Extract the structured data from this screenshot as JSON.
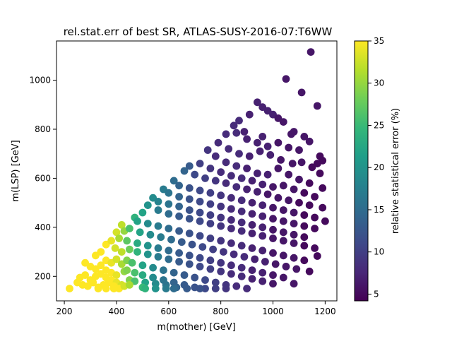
{
  "chart_data": {
    "type": "scatter",
    "title": "rel.stat.err of best SR, ATLAS-SUSY-2016-07:T6WW",
    "xlabel": "m(mother) [GeV]",
    "ylabel": "m(LSP) [GeV]",
    "xlim": [
      170,
      1245
    ],
    "ylim": [
      100,
      1160
    ],
    "xticks": [
      "200",
      "400",
      "600",
      "800",
      "1000",
      "1200"
    ],
    "yticks": [
      "200",
      "400",
      "600",
      "800",
      "1000"
    ],
    "xtick_values": [
      200,
      400,
      600,
      800,
      1000,
      1200
    ],
    "ytick_values": [
      200,
      400,
      600,
      800,
      1000
    ],
    "colorbar": {
      "label": "relative statistical error (%)",
      "range": [
        4.2,
        35
      ],
      "ticks": [
        "5",
        "10",
        "15",
        "20",
        "25",
        "30",
        "35"
      ],
      "tick_values": [
        5,
        10,
        15,
        20,
        25,
        30,
        35
      ],
      "colormap": "viridis"
    },
    "grid": false,
    "band_note": "grid of signal points spanning diagonal bands from m(mother)-m(LSP) ≈ 50 to ≈ 700 GeV",
    "points": [
      [
        1145,
        1115,
        6
      ],
      [
        1050,
        1005,
        6
      ],
      [
        1110,
        950,
        6
      ],
      [
        1170,
        895,
        6
      ],
      [
        940,
        910,
        7
      ],
      [
        960,
        890,
        7
      ],
      [
        980,
        875,
        7
      ],
      [
        1000,
        860,
        7
      ],
      [
        910,
        860,
        7
      ],
      [
        1020,
        845,
        6
      ],
      [
        1040,
        830,
        6
      ],
      [
        870,
        835,
        8
      ],
      [
        850,
        815,
        8
      ],
      [
        890,
        790,
        7
      ],
      [
        960,
        770,
        7
      ],
      [
        1080,
        790,
        6
      ],
      [
        1070,
        780,
        6
      ],
      [
        1120,
        770,
        6
      ],
      [
        1140,
        750,
        6
      ],
      [
        820,
        780,
        8
      ],
      [
        860,
        785,
        8
      ],
      [
        900,
        760,
        7
      ],
      [
        940,
        745,
        7
      ],
      [
        980,
        730,
        7
      ],
      [
        1020,
        745,
        6
      ],
      [
        1060,
        725,
        6
      ],
      [
        1100,
        715,
        6
      ],
      [
        1180,
        690,
        5
      ],
      [
        1190,
        672,
        5
      ],
      [
        1170,
        660,
        5
      ],
      [
        790,
        745,
        8
      ],
      [
        830,
        720,
        8
      ],
      [
        870,
        700,
        8
      ],
      [
        910,
        690,
        7
      ],
      [
        950,
        710,
        7
      ],
      [
        990,
        695,
        7
      ],
      [
        1030,
        675,
        6
      ],
      [
        1075,
        660,
        6
      ],
      [
        1110,
        665,
        6
      ],
      [
        1150,
        645,
        5
      ],
      [
        1180,
        620,
        5
      ],
      [
        750,
        715,
        9
      ],
      [
        780,
        690,
        8
      ],
      [
        820,
        665,
        8
      ],
      [
        860,
        650,
        8
      ],
      [
        900,
        640,
        7
      ],
      [
        940,
        620,
        7
      ],
      [
        980,
        615,
        7
      ],
      [
        1020,
        640,
        6
      ],
      [
        1060,
        615,
        6
      ],
      [
        1100,
        595,
        6
      ],
      [
        1140,
        580,
        5
      ],
      [
        1190,
        560,
        5
      ],
      [
        720,
        660,
        10
      ],
      [
        760,
        640,
        9
      ],
      [
        800,
        625,
        8
      ],
      [
        840,
        610,
        8
      ],
      [
        880,
        600,
        8
      ],
      [
        920,
        590,
        7
      ],
      [
        960,
        575,
        7
      ],
      [
        1000,
        565,
        6
      ],
      [
        1040,
        570,
        6
      ],
      [
        1080,
        555,
        6
      ],
      [
        1120,
        540,
        5
      ],
      [
        1160,
        525,
        5
      ],
      [
        680,
        650,
        13
      ],
      [
        660,
        630,
        14
      ],
      [
        700,
        615,
        11
      ],
      [
        740,
        600,
        10
      ],
      [
        780,
        590,
        9
      ],
      [
        820,
        580,
        8
      ],
      [
        860,
        565,
        8
      ],
      [
        900,
        555,
        7
      ],
      [
        940,
        545,
        7
      ],
      [
        980,
        535,
        6
      ],
      [
        1020,
        520,
        6
      ],
      [
        1060,
        510,
        6
      ],
      [
        1100,
        500,
        5
      ],
      [
        1140,
        490,
        5
      ],
      [
        1190,
        480,
        5
      ],
      [
        620,
        590,
        15
      ],
      [
        640,
        570,
        14
      ],
      [
        680,
        560,
        12
      ],
      [
        720,
        550,
        11
      ],
      [
        760,
        540,
        10
      ],
      [
        800,
        530,
        9
      ],
      [
        840,
        520,
        8
      ],
      [
        880,
        510,
        8
      ],
      [
        920,
        500,
        7
      ],
      [
        960,
        490,
        7
      ],
      [
        1000,
        480,
        6
      ],
      [
        1040,
        470,
        6
      ],
      [
        1080,
        460,
        6
      ],
      [
        1120,
        450,
        5
      ],
      [
        1160,
        440,
        5
      ],
      [
        1200,
        425,
        5
      ],
      [
        580,
        555,
        17
      ],
      [
        600,
        540,
        16
      ],
      [
        640,
        525,
        14
      ],
      [
        680,
        515,
        12
      ],
      [
        720,
        505,
        11
      ],
      [
        760,
        495,
        10
      ],
      [
        800,
        485,
        9
      ],
      [
        840,
        475,
        8
      ],
      [
        880,
        465,
        8
      ],
      [
        920,
        455,
        7
      ],
      [
        960,
        445,
        7
      ],
      [
        1000,
        435,
        6
      ],
      [
        1040,
        425,
        6
      ],
      [
        1080,
        415,
        6
      ],
      [
        1120,
        405,
        5
      ],
      [
        1160,
        395,
        5
      ],
      [
        540,
        520,
        19
      ],
      [
        560,
        505,
        18
      ],
      [
        600,
        495,
        16
      ],
      [
        640,
        485,
        14
      ],
      [
        680,
        470,
        12
      ],
      [
        720,
        460,
        11
      ],
      [
        760,
        450,
        10
      ],
      [
        800,
        440,
        9
      ],
      [
        840,
        430,
        8
      ],
      [
        880,
        420,
        8
      ],
      [
        920,
        410,
        7
      ],
      [
        960,
        400,
        7
      ],
      [
        1000,
        390,
        6
      ],
      [
        1040,
        380,
        6
      ],
      [
        1080,
        370,
        6
      ],
      [
        1120,
        360,
        5
      ],
      [
        500,
        460,
        22
      ],
      [
        520,
        490,
        20
      ],
      [
        560,
        470,
        17
      ],
      [
        600,
        455,
        15
      ],
      [
        640,
        445,
        13
      ],
      [
        680,
        435,
        12
      ],
      [
        720,
        425,
        11
      ],
      [
        760,
        415,
        10
      ],
      [
        800,
        405,
        9
      ],
      [
        840,
        395,
        8
      ],
      [
        880,
        385,
        8
      ],
      [
        920,
        375,
        7
      ],
      [
        960,
        365,
        7
      ],
      [
        1000,
        355,
        6
      ],
      [
        1040,
        345,
        6
      ],
      [
        1080,
        335,
        6
      ],
      [
        1120,
        325,
        5
      ],
      [
        1160,
        315,
        5
      ],
      [
        470,
        440,
        24
      ],
      [
        480,
        425,
        22
      ],
      [
        520,
        415,
        19
      ],
      [
        560,
        405,
        17
      ],
      [
        600,
        395,
        15
      ],
      [
        640,
        385,
        13
      ],
      [
        680,
        375,
        12
      ],
      [
        720,
        365,
        11
      ],
      [
        760,
        355,
        10
      ],
      [
        800,
        345,
        9
      ],
      [
        840,
        335,
        8
      ],
      [
        880,
        325,
        8
      ],
      [
        920,
        315,
        7
      ],
      [
        960,
        305,
        7
      ],
      [
        1000,
        295,
        6
      ],
      [
        1040,
        285,
        6
      ],
      [
        1080,
        275,
        6
      ],
      [
        1120,
        265,
        5
      ],
      [
        1170,
        283,
        5
      ],
      [
        420,
        410,
        32
      ],
      [
        430,
        385,
        30
      ],
      [
        450,
        395,
        26
      ],
      [
        490,
        380,
        22
      ],
      [
        530,
        370,
        19
      ],
      [
        570,
        360,
        17
      ],
      [
        610,
        350,
        15
      ],
      [
        650,
        340,
        13
      ],
      [
        690,
        330,
        12
      ],
      [
        730,
        320,
        11
      ],
      [
        770,
        310,
        10
      ],
      [
        810,
        300,
        9
      ],
      [
        850,
        290,
        8
      ],
      [
        890,
        280,
        8
      ],
      [
        930,
        270,
        7
      ],
      [
        970,
        260,
        7
      ],
      [
        1010,
        250,
        6
      ],
      [
        1050,
        240,
        6
      ],
      [
        1090,
        230,
        6
      ],
      [
        1140,
        220,
        5
      ],
      [
        400,
        380,
        33
      ],
      [
        410,
        355,
        31
      ],
      [
        440,
        345,
        27
      ],
      [
        480,
        335,
        23
      ],
      [
        520,
        325,
        20
      ],
      [
        560,
        315,
        17
      ],
      [
        600,
        305,
        15
      ],
      [
        640,
        295,
        13
      ],
      [
        680,
        285,
        12
      ],
      [
        720,
        275,
        11
      ],
      [
        760,
        265,
        10
      ],
      [
        800,
        255,
        9
      ],
      [
        840,
        245,
        8
      ],
      [
        880,
        235,
        8
      ],
      [
        920,
        225,
        7
      ],
      [
        960,
        215,
        7
      ],
      [
        1000,
        205,
        6
      ],
      [
        1040,
        195,
        6
      ],
      [
        1080,
        170,
        6
      ],
      [
        360,
        330,
        35
      ],
      [
        380,
        345,
        34
      ],
      [
        395,
        315,
        33
      ],
      [
        420,
        300,
        32
      ],
      [
        450,
        310,
        28
      ],
      [
        480,
        300,
        24
      ],
      [
        520,
        290,
        20
      ],
      [
        560,
        280,
        17
      ],
      [
        600,
        270,
        15
      ],
      [
        640,
        260,
        13
      ],
      [
        680,
        250,
        12
      ],
      [
        720,
        240,
        11
      ],
      [
        760,
        230,
        10
      ],
      [
        800,
        220,
        9
      ],
      [
        840,
        210,
        8
      ],
      [
        880,
        200,
        8
      ],
      [
        920,
        190,
        7
      ],
      [
        960,
        180,
        7
      ],
      [
        1000,
        170,
        6
      ],
      [
        320,
        285,
        35
      ],
      [
        340,
        300,
        35
      ],
      [
        360,
        265,
        35
      ],
      [
        380,
        255,
        34
      ],
      [
        400,
        270,
        33
      ],
      [
        420,
        250,
        31
      ],
      [
        440,
        265,
        29
      ],
      [
        460,
        255,
        26
      ],
      [
        500,
        245,
        22
      ],
      [
        540,
        235,
        19
      ],
      [
        580,
        225,
        16
      ],
      [
        620,
        215,
        14
      ],
      [
        660,
        205,
        13
      ],
      [
        700,
        195,
        12
      ],
      [
        740,
        185,
        11
      ],
      [
        780,
        175,
        10
      ],
      [
        820,
        165,
        9
      ],
      [
        860,
        160,
        8
      ],
      [
        900,
        150,
        8
      ],
      [
        280,
        255,
        35
      ],
      [
        300,
        240,
        35
      ],
      [
        320,
        230,
        35
      ],
      [
        340,
        245,
        35
      ],
      [
        360,
        225,
        35
      ],
      [
        380,
        215,
        35
      ],
      [
        400,
        205,
        34
      ],
      [
        430,
        220,
        30
      ],
      [
        440,
        225,
        29
      ],
      [
        470,
        215,
        26
      ],
      [
        500,
        205,
        23
      ],
      [
        540,
        195,
        19
      ],
      [
        580,
        185,
        16
      ],
      [
        620,
        175,
        14
      ],
      [
        660,
        165,
        13
      ],
      [
        700,
        155,
        12
      ],
      [
        740,
        150,
        11
      ],
      [
        780,
        150,
        10
      ],
      [
        820,
        150,
        9
      ],
      [
        260,
        195,
        35
      ],
      [
        280,
        205,
        35
      ],
      [
        300,
        185,
        35
      ],
      [
        320,
        200,
        35
      ],
      [
        340,
        210,
        35
      ],
      [
        360,
        195,
        35
      ],
      [
        380,
        185,
        35
      ],
      [
        400,
        175,
        34
      ],
      [
        420,
        165,
        33
      ],
      [
        450,
        185,
        29
      ],
      [
        470,
        180,
        26
      ],
      [
        510,
        175,
        22
      ],
      [
        550,
        170,
        19
      ],
      [
        590,
        165,
        16
      ],
      [
        630,
        155,
        14
      ],
      [
        670,
        150,
        13
      ],
      [
        720,
        150,
        12
      ],
      [
        220,
        150,
        35
      ],
      [
        250,
        175,
        35
      ],
      [
        270,
        165,
        35
      ],
      [
        290,
        160,
        35
      ],
      [
        310,
        175,
        35
      ],
      [
        330,
        155,
        35
      ],
      [
        350,
        165,
        35
      ],
      [
        370,
        175,
        35
      ],
      [
        390,
        160,
        35
      ],
      [
        410,
        150,
        35
      ],
      [
        430,
        160,
        33
      ],
      [
        450,
        165,
        31
      ],
      [
        500,
        155,
        25
      ],
      [
        510,
        150,
        24
      ],
      [
        550,
        150,
        20
      ],
      [
        590,
        150,
        17
      ],
      [
        620,
        150,
        15
      ],
      [
        330,
        150,
        35
      ],
      [
        360,
        150,
        35
      ],
      [
        390,
        150,
        35
      ]
    ]
  }
}
